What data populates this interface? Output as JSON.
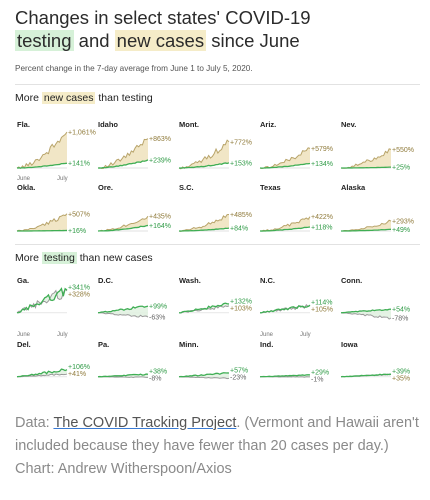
{
  "title": {
    "line1": "Changes in select states' COVID-19",
    "testing": "testing",
    "and": "and",
    "new_cases": "new cases",
    "since": "since June"
  },
  "subtitle": "Percent change in the 7-day average from June 1 to July 5, 2020.",
  "section1": {
    "pre": "More",
    "hl": "new cases",
    "post": "than testing"
  },
  "section2": {
    "pre": "More",
    "hl": "testing",
    "post": "than new cases"
  },
  "footer": {
    "pre": "Data: ",
    "link": "The COVID Tracking Project",
    "post": ". (Vermont and Hawaii aren't included because they have fewer than 20 cases per day.) Chart: Andrew Witherspoon/Axios"
  },
  "colors": {
    "cases": "#b8a46a",
    "cases_fill": "#efe3c0",
    "testing": "#3fae54",
    "neutral": "#9a9a9a"
  },
  "chart_data": {
    "type": "area",
    "ylabel": "Percent change",
    "xlim": [
      "June 1",
      "July 5"
    ],
    "x_ticks": [
      "June",
      "July"
    ],
    "panels": [
      {
        "state": "Fla.",
        "group": 1,
        "cases_pct": 1061,
        "testing_pct": 141,
        "cases_label": "+1,061%",
        "testing_label": "+141%",
        "show_ticks": true
      },
      {
        "state": "Idaho",
        "group": 1,
        "cases_pct": 863,
        "testing_pct": 239,
        "cases_label": "+863%",
        "testing_label": "+239%"
      },
      {
        "state": "Mont.",
        "group": 1,
        "cases_pct": 772,
        "testing_pct": 153,
        "cases_label": "+772%",
        "testing_label": "+153%"
      },
      {
        "state": "Ariz.",
        "group": 1,
        "cases_pct": 579,
        "testing_pct": 134,
        "cases_label": "+579%",
        "testing_label": "+134%"
      },
      {
        "state": "Nev.",
        "group": 1,
        "cases_pct": 550,
        "testing_pct": 25,
        "cases_label": "+550%",
        "testing_label": "+25%"
      },
      {
        "state": "Okla.",
        "group": 1,
        "cases_pct": 507,
        "testing_pct": 16,
        "cases_label": "+507%",
        "testing_label": "+16%"
      },
      {
        "state": "Ore.",
        "group": 1,
        "cases_pct": 435,
        "testing_pct": 164,
        "cases_label": "+435%",
        "testing_label": "+164%"
      },
      {
        "state": "S.C.",
        "group": 1,
        "cases_pct": 485,
        "testing_pct": 84,
        "cases_label": "+485%",
        "testing_label": "+84%"
      },
      {
        "state": "Texas",
        "group": 1,
        "cases_pct": 422,
        "testing_pct": 118,
        "cases_label": "+422%",
        "testing_label": "+118%"
      },
      {
        "state": "Alaska",
        "group": 1,
        "cases_pct": 293,
        "testing_pct": 49,
        "cases_label": "+293%",
        "testing_label": "+49%"
      },
      {
        "state": "Ga.",
        "group": 2,
        "cases_pct": 328,
        "testing_pct": 341,
        "cases_label": "+328%",
        "testing_label": "+341%",
        "show_ticks": true
      },
      {
        "state": "D.C.",
        "group": 2,
        "cases_pct": -63,
        "testing_pct": 99,
        "cases_label": "-63%",
        "testing_label": "+99%"
      },
      {
        "state": "Wash.",
        "group": 2,
        "cases_pct": 103,
        "testing_pct": 132,
        "cases_label": "+103%",
        "testing_label": "+132%"
      },
      {
        "state": "N.C.",
        "group": 2,
        "cases_pct": 105,
        "testing_pct": 114,
        "cases_label": "+105%",
        "testing_label": "+114%",
        "show_ticks": true
      },
      {
        "state": "Conn.",
        "group": 2,
        "cases_pct": -78,
        "testing_pct": 54,
        "cases_label": "-78%",
        "testing_label": "+54%"
      },
      {
        "state": "Del.",
        "group": 2,
        "cases_pct": 41,
        "testing_pct": 106,
        "cases_label": "+41%",
        "testing_label": "+106%"
      },
      {
        "state": "Pa.",
        "group": 2,
        "cases_pct": -8,
        "testing_pct": 38,
        "cases_label": "-8%",
        "testing_label": "+38%"
      },
      {
        "state": "Minn.",
        "group": 2,
        "cases_pct": -23,
        "testing_pct": 57,
        "cases_label": "-23%",
        "testing_label": "+57%"
      },
      {
        "state": "Ind.",
        "group": 2,
        "cases_pct": -1,
        "testing_pct": 29,
        "cases_label": "-1%",
        "testing_label": "+29%"
      },
      {
        "state": "Iowa",
        "group": 2,
        "cases_pct": 35,
        "testing_pct": 39,
        "cases_label": "+35%",
        "testing_label": "+39%"
      }
    ]
  }
}
